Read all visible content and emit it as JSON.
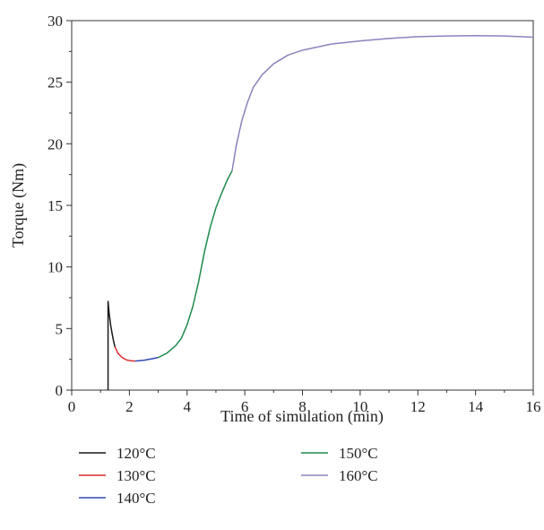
{
  "chart_data": {
    "type": "line",
    "title": "",
    "xlabel": "Time of simulation (min)",
    "ylabel": "Torque (Nm)",
    "xlim": [
      0,
      16
    ],
    "ylim": [
      0,
      30
    ],
    "xticks": [
      0,
      2,
      4,
      6,
      8,
      10,
      12,
      14,
      16
    ],
    "yticks": [
      0,
      5,
      10,
      15,
      20,
      25,
      30
    ],
    "xtick_labels": [
      "0",
      "2",
      "4",
      "6",
      "8",
      "10",
      "12",
      "14",
      "16"
    ],
    "ytick_labels": [
      "0",
      "5",
      "10",
      "15",
      "20",
      "25",
      "30"
    ],
    "grid": false,
    "legend_position": "bottom",
    "series": [
      {
        "name": "120°C",
        "color": "#1a1a1a",
        "points": [
          [
            1.26,
            0
          ],
          [
            1.26,
            7.2
          ],
          [
            1.3,
            6.2
          ],
          [
            1.35,
            5.3
          ],
          [
            1.4,
            4.6
          ],
          [
            1.45,
            4.0
          ],
          [
            1.5,
            3.5
          ]
        ]
      },
      {
        "name": "130°C",
        "color": "#d92b2b",
        "points": [
          [
            1.5,
            3.5
          ],
          [
            1.6,
            3.0
          ],
          [
            1.75,
            2.65
          ],
          [
            1.9,
            2.45
          ],
          [
            2.05,
            2.38
          ],
          [
            2.2,
            2.36
          ]
        ]
      },
      {
        "name": "140°C",
        "color": "#3346b0",
        "points": [
          [
            2.2,
            2.36
          ],
          [
            2.5,
            2.42
          ],
          [
            2.8,
            2.55
          ],
          [
            3.0,
            2.65
          ]
        ]
      },
      {
        "name": "150°C",
        "color": "#1e8a4c",
        "points": [
          [
            3.0,
            2.65
          ],
          [
            3.3,
            3.0
          ],
          [
            3.6,
            3.6
          ],
          [
            3.8,
            4.2
          ],
          [
            4.0,
            5.3
          ],
          [
            4.2,
            6.8
          ],
          [
            4.4,
            8.8
          ],
          [
            4.6,
            11.2
          ],
          [
            4.8,
            13.2
          ],
          [
            5.0,
            14.8
          ],
          [
            5.2,
            16.0
          ],
          [
            5.4,
            17.1
          ],
          [
            5.56,
            17.8
          ]
        ]
      },
      {
        "name": "160°C",
        "color": "#8a82bd",
        "points": [
          [
            5.56,
            17.8
          ],
          [
            5.7,
            19.8
          ],
          [
            5.9,
            21.9
          ],
          [
            6.1,
            23.4
          ],
          [
            6.3,
            24.6
          ],
          [
            6.6,
            25.6
          ],
          [
            7.0,
            26.5
          ],
          [
            7.5,
            27.2
          ],
          [
            8.0,
            27.6
          ],
          [
            9.0,
            28.1
          ],
          [
            10.0,
            28.35
          ],
          [
            11.0,
            28.55
          ],
          [
            12.0,
            28.7
          ],
          [
            13.0,
            28.75
          ],
          [
            14.0,
            28.78
          ],
          [
            15.0,
            28.75
          ],
          [
            16.0,
            28.65
          ]
        ]
      }
    ]
  }
}
